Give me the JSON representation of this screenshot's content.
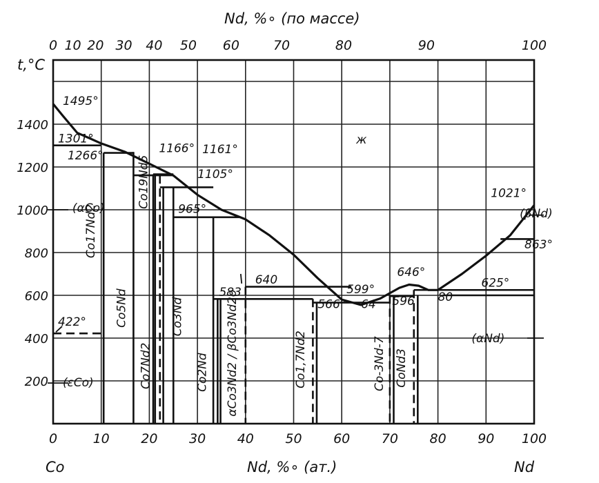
{
  "chart_data": {
    "type": "phase diagram",
    "top_axis": {
      "title": "Nd, %∘ (по массе)",
      "ticks": [
        "0",
        "10",
        "20",
        "30",
        "40",
        "50",
        "60",
        "70",
        "80",
        "90",
        "100"
      ],
      "tick_at_at_percent": [
        0,
        4.1,
        8.8,
        14.7,
        21.0,
        28.1,
        37.0,
        47.5,
        60.4,
        77.6,
        100
      ]
    },
    "bottom_axis": {
      "title": "Nd, %∘ (ат.)",
      "left_element": "Co",
      "right_element": "Nd",
      "ticks": [
        "0",
        "10",
        "20",
        "30",
        "40",
        "50",
        "60",
        "70",
        "80",
        "90",
        "100"
      ],
      "xlim": [
        0,
        100
      ]
    },
    "left_axis": {
      "title": "t,°C",
      "ticks": [
        "200",
        "400",
        "600",
        "800",
        "1000",
        "1200",
        "1400"
      ],
      "tick_values": [
        200,
        400,
        600,
        800,
        1000,
        1200,
        1400
      ],
      "ylim": [
        0,
        1700
      ]
    },
    "grid": true,
    "liquidus": {
      "x": [
        0,
        2,
        5,
        10,
        15,
        20,
        25,
        30,
        35,
        40,
        45,
        50,
        55,
        60,
        64,
        68,
        72,
        74,
        76,
        78,
        80,
        85,
        90,
        95,
        100
      ],
      "y": [
        1495,
        1440,
        1360,
        1310,
        1270,
        1215,
        1160,
        1070,
        1000,
        955,
        880,
        790,
        680,
        580,
        555,
        585,
        635,
        650,
        645,
        625,
        625,
        700,
        785,
        880,
        1021
      ]
    },
    "phase_lines": [
      {
        "label": "Co17Nd2",
        "x": 10.5,
        "style": "solid",
        "y_top": 1266,
        "y_bottom": 0
      },
      {
        "label": "Co5Nd",
        "x": 16.7,
        "style": "solid",
        "y_top": 1270,
        "y_bottom": 0
      },
      {
        "label": "Co19Nd5",
        "x": 20.8,
        "style": "solid",
        "y_top": 1166,
        "y_bottom": 0
      },
      {
        "label": "Co7Nd2",
        "x": 22.2,
        "style": "dashed",
        "y_top": 1161,
        "y_bottom": 0
      },
      {
        "label": "Co3Nd",
        "x": 25.0,
        "style": "solid",
        "y_top": 1105,
        "y_bottom": 0
      },
      {
        "label": "Co2Nd",
        "x": 33.3,
        "style": "solid",
        "y_top": 965,
        "y_bottom": 0
      },
      {
        "label": "αCo3Nd2 / βCo3Nd2o",
        "x": 40.0,
        "style": "dashed",
        "y_top": 640,
        "y_bottom": 0
      },
      {
        "label": "Co1,7Nd2",
        "x": 54.0,
        "style": "dashed",
        "y_top": 583,
        "y_bottom": 0
      },
      {
        "label": "Co-3Nd-7",
        "x": 70.0,
        "style": "dashed",
        "y_top": 599,
        "y_bottom": 0
      },
      {
        "label": "CoNd3",
        "x": 75.0,
        "style": "dashed",
        "y_top": 625,
        "y_bottom": 0
      }
    ],
    "annotations": [
      {
        "text": "1495°",
        "x": 0,
        "y": 1495
      },
      {
        "text": "1301°",
        "x": 0,
        "y": 1301
      },
      {
        "text": "1266°",
        "x": 10.5,
        "y": 1266
      },
      {
        "text": "1166°",
        "x": 20.8,
        "y": 1166
      },
      {
        "text": "1161°",
        "x": 22.2,
        "y": 1161
      },
      {
        "text": "1105°",
        "x": 25.0,
        "y": 1105
      },
      {
        "text": "965°",
        "x": 33.3,
        "y": 965
      },
      {
        "text": "640",
        "x": 40,
        "y": 640
      },
      {
        "text": "583",
        "x": 34,
        "y": 583
      },
      {
        "text": "566°",
        "x": 54,
        "y": 566
      },
      {
        "text": "599°",
        "x": 64,
        "y": 599
      },
      {
        "text": "64",
        "x": 64,
        "y": 555
      },
      {
        "text": "596",
        "x": 70,
        "y": 596
      },
      {
        "text": "646°",
        "x": 74,
        "y": 646
      },
      {
        "text": "80",
        "x": 80,
        "y": 625
      },
      {
        "text": "625°",
        "x": 80,
        "y": 625
      },
      {
        "text": "1021°",
        "x": 100,
        "y": 1021
      },
      {
        "text": "863°",
        "x": 100,
        "y": 863
      },
      {
        "text": "422°",
        "x": 0,
        "y": 422
      },
      {
        "text": "ж",
        "x": 64,
        "y": 1300
      },
      {
        "text": "(αCo)",
        "x": 0,
        "y": 1000
      },
      {
        "text": "(εCo)",
        "x": 0,
        "y": 190
      },
      {
        "text": "(βNd)",
        "x": 100,
        "y": 950
      },
      {
        "text": "(αNd)",
        "x": 100,
        "y": 400
      }
    ],
    "horizontal_lines": [
      {
        "y": 1301,
        "x_from": 0,
        "x_to": 10
      },
      {
        "y": 1266,
        "x_from": 10.5,
        "x_to": 16.7
      },
      {
        "y": 1166,
        "x_from": 20.8,
        "x_to": 25.0
      },
      {
        "y": 1161,
        "x_from": 16.7,
        "x_to": 25.0
      },
      {
        "y": 1105,
        "x_from": 22.2,
        "x_to": 33.3
      },
      {
        "y": 965,
        "x_from": 25.0,
        "x_to": 39.0
      },
      {
        "y": 640,
        "x_from": 40.0,
        "x_to": 62.0
      },
      {
        "y": 583,
        "x_from": 33.3,
        "x_to": 54.0
      },
      {
        "y": 566,
        "x_from": 54.0,
        "x_to": 70.0
      },
      {
        "y": 596,
        "x_from": 70.0,
        "x_to": 75.0
      },
      {
        "y": 625,
        "x_from": 75.0,
        "x_to": 100
      },
      {
        "y": 600,
        "x_from": 81.0,
        "x_to": 100
      },
      {
        "y": 863,
        "x_from": 93.0,
        "x_to": 100
      }
    ],
    "dashed_horizontal": [
      {
        "y": 422,
        "x_from": 0,
        "x_to": 10.5
      }
    ]
  }
}
